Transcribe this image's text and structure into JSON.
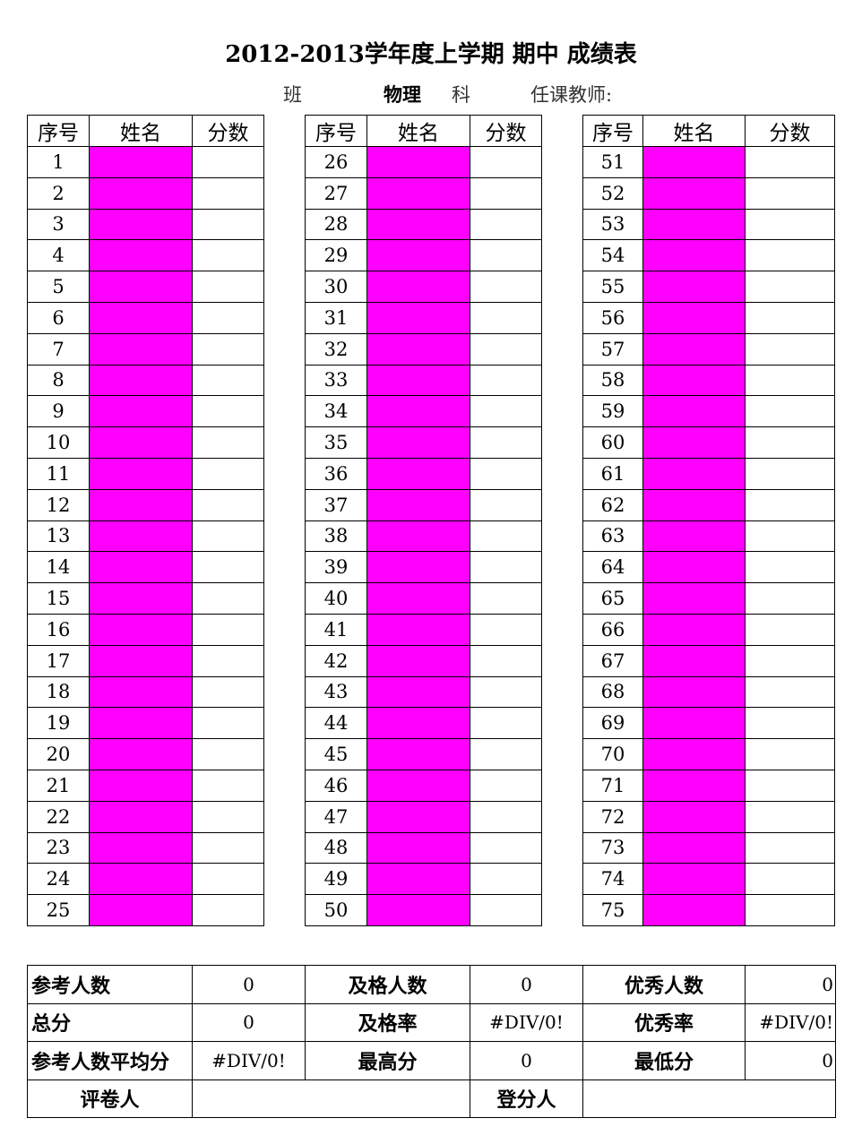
{
  "title": "2012-2013学年度上学期 期中 成绩表",
  "subheader": {
    "class_label": "班",
    "subject": "物理",
    "subject_suffix": "科",
    "teacher_label": "任课教师:"
  },
  "roster": {
    "headers": [
      "序号",
      "姓名",
      "分数"
    ],
    "colors": {
      "name_fill": "#ff00ff"
    },
    "tables": [
      {
        "numbers": [
          1,
          2,
          3,
          4,
          5,
          6,
          7,
          8,
          9,
          10,
          11,
          12,
          13,
          14,
          15,
          16,
          17,
          18,
          19,
          20,
          21,
          22,
          23,
          24,
          25
        ]
      },
      {
        "numbers": [
          26,
          27,
          28,
          29,
          30,
          31,
          32,
          33,
          34,
          35,
          36,
          37,
          38,
          39,
          40,
          41,
          42,
          43,
          44,
          45,
          46,
          47,
          48,
          49,
          50
        ]
      },
      {
        "numbers": [
          51,
          52,
          53,
          54,
          55,
          56,
          57,
          58,
          59,
          60,
          61,
          62,
          63,
          64,
          65,
          66,
          67,
          68,
          69,
          70,
          71,
          72,
          73,
          74,
          75
        ]
      }
    ]
  },
  "summary": {
    "examinees_label": "参考人数",
    "examinees": "0",
    "pass_count_label": "及格人数",
    "pass_count": "0",
    "excellent_count_label": "优秀人数",
    "excellent_count": "0",
    "total_label": "总分",
    "total": "0",
    "pass_rate_label": "及格率",
    "pass_rate": "#DIV/0!",
    "excellent_rate_label": "优秀率",
    "excellent_rate": "#DIV/0!",
    "average_label": "参考人数平均分",
    "average": "#DIV/0!",
    "max_label": "最高分",
    "max": "0",
    "min_label": "最低分",
    "min": "0",
    "grader_label": "评卷人",
    "recorder_label": "登分人"
  }
}
